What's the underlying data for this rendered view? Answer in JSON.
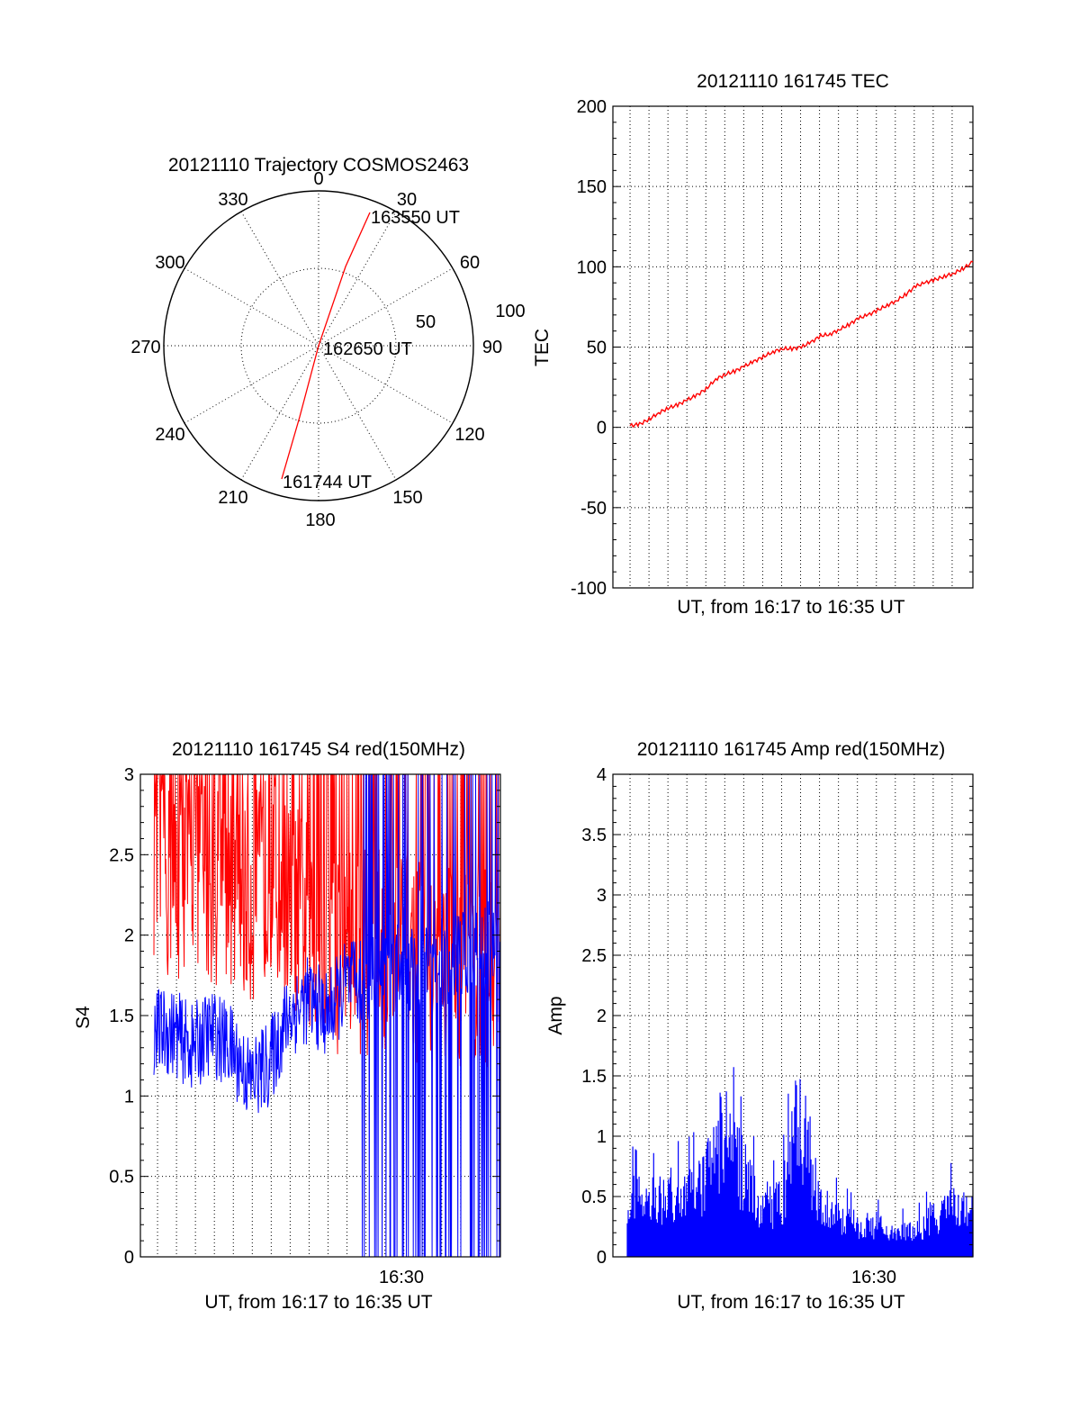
{
  "colors": {
    "red": "#ff0000",
    "blue": "#0000ff",
    "axes": "#000000"
  },
  "chart_data": [
    {
      "type": "scatter",
      "id": "trajectory",
      "title": "20121110 Trajectory COSMOS2463",
      "azimuth_labels": [
        "0",
        "30",
        "60",
        "90",
        "120",
        "150",
        "180",
        "210",
        "240",
        "270",
        "300",
        "330"
      ],
      "radius_labels": [
        "50",
        "100"
      ],
      "points": [
        {
          "time": "161744 UT",
          "azimuth": 195,
          "elevation": 18
        },
        {
          "time": "162650 UT",
          "azimuth": 90,
          "elevation": 90
        },
        {
          "time": "163550 UT",
          "azimuth": 24,
          "elevation": 24
        }
      ],
      "grid": true
    },
    {
      "type": "line",
      "id": "tec",
      "title": "20121110 161745 TEC",
      "xlabel": "UT, from 16:17 to 16:35 UT",
      "ylabel": "TEC",
      "ylim": [
        -100,
        200
      ],
      "yticks": [
        "200",
        "150",
        "100",
        "50",
        "0",
        "-50",
        "-100"
      ],
      "grid": true,
      "series": [
        {
          "color": "#ff0000",
          "x": [
            0,
            0.5,
            1,
            1.5,
            2,
            2.5,
            3,
            3.5,
            4,
            4.5,
            5,
            5.5,
            6,
            6.5,
            7,
            7.5,
            8,
            8.5,
            9,
            9.5,
            10,
            10.5,
            11,
            11.5,
            12,
            12.5,
            13,
            13.5,
            14,
            14.5,
            15,
            15.5,
            16,
            16.5,
            17,
            17.5,
            18
          ],
          "values": [
            1,
            2,
            5,
            9,
            12,
            14,
            17,
            20,
            24,
            30,
            33,
            35,
            38,
            41,
            44,
            47,
            49,
            49,
            50,
            53,
            57,
            58,
            61,
            64,
            68,
            70,
            73,
            76,
            79,
            83,
            88,
            90,
            92,
            94,
            96,
            99,
            103
          ]
        }
      ]
    },
    {
      "type": "line",
      "id": "s4",
      "title": "20121110 161745 S4 red(150MHz)",
      "xlabel": "UT, from 16:17 to 16:35 UT",
      "ylabel": "S4",
      "ylim": [
        0,
        3
      ],
      "yticks": [
        "3",
        "2.5",
        "2",
        "1.5",
        "1",
        "0.5",
        "0"
      ],
      "xticks": [
        "16:30"
      ],
      "grid": true,
      "series": [
        {
          "color": "#ff0000",
          "x": [
            0,
            1,
            2,
            3,
            4,
            5,
            6,
            7,
            8,
            9,
            10,
            11,
            12,
            13,
            14,
            15,
            16,
            17,
            18
          ],
          "values": [
            2.4,
            2.3,
            2.5,
            2.3,
            2.3,
            2.2,
            2.4,
            2.2,
            2.1,
            1.9,
            1.9,
            1.9,
            1.9,
            1.9,
            1.8,
            1.8,
            1.8,
            1.8,
            1.8
          ]
        },
        {
          "color": "#0000ff",
          "x": [
            0,
            1,
            2,
            3,
            4,
            5,
            6,
            7,
            8,
            9,
            10,
            11,
            12,
            13,
            14,
            15,
            16,
            17,
            18
          ],
          "values": [
            1.4,
            1.4,
            1.3,
            1.4,
            1.3,
            1.1,
            1.2,
            1.5,
            1.6,
            1.5,
            1.7,
            1.7,
            1.8,
            1.8,
            1.8,
            1.8,
            1.9,
            1.9,
            2.0
          ]
        }
      ]
    },
    {
      "type": "bar",
      "id": "amp",
      "title": "20121110 161745 Amp red(150MHz)",
      "xlabel": "UT, from 16:17 to 16:35 UT",
      "ylabel": "Amp",
      "ylim": [
        0,
        4
      ],
      "yticks": [
        "4",
        "3.5",
        "3",
        "2.5",
        "2",
        "1.5",
        "1",
        "0.5",
        "0"
      ],
      "xticks": [
        "16:30"
      ],
      "grid": true,
      "series": [
        {
          "color": "#0000ff",
          "x": [
            0,
            1,
            2,
            3,
            4,
            5,
            6,
            7,
            8,
            9,
            10,
            11,
            12,
            13,
            14,
            15,
            16,
            17,
            18
          ],
          "values": [
            0.6,
            0.5,
            0.6,
            0.6,
            0.7,
            1.2,
            0.8,
            0.5,
            0.5,
            1.4,
            0.5,
            0.4,
            0.3,
            0.3,
            0.25,
            0.25,
            0.4,
            0.5,
            0.4
          ]
        }
      ]
    }
  ]
}
